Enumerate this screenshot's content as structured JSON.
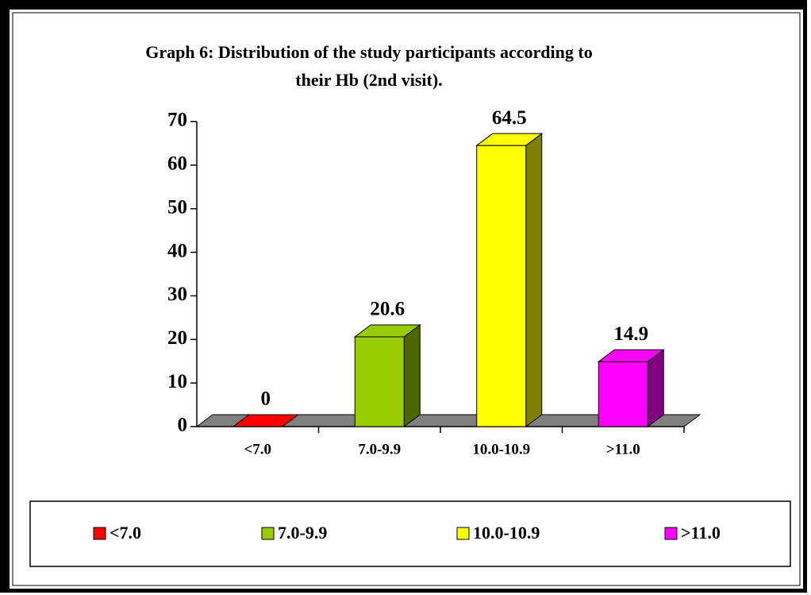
{
  "chart_data": {
    "type": "bar3d",
    "title": [
      "Graph 6: Distribution of the study participants according to",
      "their Hb (2nd visit)."
    ],
    "categories": [
      "<7.0",
      "7.0-9.9",
      "10.0-10.9",
      ">11.0"
    ],
    "values": [
      0,
      20.6,
      64.5,
      14.9
    ],
    "colors": [
      "#ff0000",
      "#99cc00",
      "#ffff00",
      "#ff00ff"
    ],
    "side_colors": [
      "#800000",
      "#4d6600",
      "#808000",
      "#800080"
    ],
    "ylim": [
      0,
      70
    ],
    "yticks": [
      0,
      10,
      20,
      30,
      40,
      50,
      60,
      70
    ],
    "legend": "bottom"
  }
}
